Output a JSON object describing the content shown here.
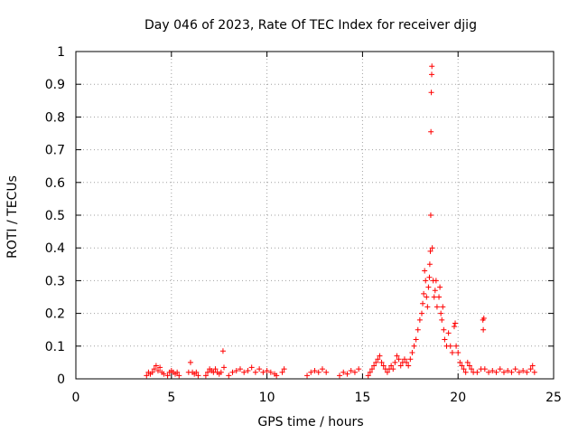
{
  "chart_data": {
    "type": "scatter",
    "title": "Day 046 of 2023, Rate Of TEC Index for receiver djig",
    "xlabel": "GPS time / hours",
    "ylabel": "ROTI / TECUs",
    "xlim": [
      0,
      25
    ],
    "ylim": [
      0,
      1
    ],
    "xticks": [
      "0",
      "5",
      "10",
      "15",
      "20",
      "25"
    ],
    "yticks": [
      "0",
      "0.1",
      "0.2",
      "0.3",
      "0.4",
      "0.5",
      "0.6",
      "0.7",
      "0.8",
      "0.9",
      "1"
    ],
    "grid": true,
    "marker": "+",
    "series": [
      {
        "color": "#ff0000",
        "points": [
          [
            3.7,
            0.01
          ],
          [
            3.8,
            0.02
          ],
          [
            3.9,
            0.015
          ],
          [
            4.0,
            0.02
          ],
          [
            4.1,
            0.03
          ],
          [
            4.2,
            0.04
          ],
          [
            4.3,
            0.025
          ],
          [
            4.4,
            0.035
          ],
          [
            4.5,
            0.02
          ],
          [
            4.6,
            0.015
          ],
          [
            4.8,
            0.01
          ],
          [
            4.9,
            0.02
          ],
          [
            5.0,
            0.025
          ],
          [
            5.1,
            0.02
          ],
          [
            5.2,
            0.015
          ],
          [
            5.3,
            0.02
          ],
          [
            5.4,
            0.01
          ],
          [
            5.9,
            0.02
          ],
          [
            6.0,
            0.05
          ],
          [
            6.1,
            0.02
          ],
          [
            6.2,
            0.015
          ],
          [
            6.3,
            0.02
          ],
          [
            6.4,
            0.01
          ],
          [
            6.8,
            0.01
          ],
          [
            6.9,
            0.02
          ],
          [
            7.0,
            0.03
          ],
          [
            7.1,
            0.025
          ],
          [
            7.2,
            0.02
          ],
          [
            7.3,
            0.03
          ],
          [
            7.4,
            0.02
          ],
          [
            7.5,
            0.015
          ],
          [
            7.6,
            0.02
          ],
          [
            7.7,
            0.085
          ],
          [
            7.75,
            0.035
          ],
          [
            8.0,
            0.01
          ],
          [
            8.2,
            0.02
          ],
          [
            8.4,
            0.025
          ],
          [
            8.6,
            0.03
          ],
          [
            8.8,
            0.02
          ],
          [
            9.0,
            0.025
          ],
          [
            9.2,
            0.035
          ],
          [
            9.4,
            0.02
          ],
          [
            9.6,
            0.03
          ],
          [
            9.8,
            0.02
          ],
          [
            10.0,
            0.025
          ],
          [
            10.2,
            0.02
          ],
          [
            10.4,
            0.015
          ],
          [
            10.5,
            0.01
          ],
          [
            10.8,
            0.02
          ],
          [
            10.9,
            0.03
          ],
          [
            12.1,
            0.01
          ],
          [
            12.3,
            0.02
          ],
          [
            12.5,
            0.025
          ],
          [
            12.7,
            0.02
          ],
          [
            12.9,
            0.03
          ],
          [
            13.1,
            0.02
          ],
          [
            13.8,
            0.01
          ],
          [
            14.0,
            0.02
          ],
          [
            14.2,
            0.015
          ],
          [
            14.4,
            0.025
          ],
          [
            14.6,
            0.02
          ],
          [
            14.8,
            0.03
          ],
          [
            15.3,
            0.01
          ],
          [
            15.4,
            0.02
          ],
          [
            15.5,
            0.03
          ],
          [
            15.6,
            0.04
          ],
          [
            15.7,
            0.05
          ],
          [
            15.8,
            0.06
          ],
          [
            15.9,
            0.07
          ],
          [
            16.0,
            0.05
          ],
          [
            16.1,
            0.04
          ],
          [
            16.2,
            0.03
          ],
          [
            16.3,
            0.02
          ],
          [
            16.4,
            0.03
          ],
          [
            16.5,
            0.04
          ],
          [
            16.6,
            0.03
          ],
          [
            16.7,
            0.05
          ],
          [
            16.8,
            0.07
          ],
          [
            16.9,
            0.06
          ],
          [
            17.0,
            0.04
          ],
          [
            17.1,
            0.05
          ],
          [
            17.2,
            0.06
          ],
          [
            17.3,
            0.05
          ],
          [
            17.4,
            0.04
          ],
          [
            17.5,
            0.06
          ],
          [
            17.6,
            0.08
          ],
          [
            17.7,
            0.1
          ],
          [
            17.8,
            0.12
          ],
          [
            17.9,
            0.15
          ],
          [
            18.0,
            0.18
          ],
          [
            18.1,
            0.2
          ],
          [
            18.15,
            0.23
          ],
          [
            18.2,
            0.26
          ],
          [
            18.25,
            0.33
          ],
          [
            18.3,
            0.3
          ],
          [
            18.35,
            0.25
          ],
          [
            18.4,
            0.22
          ],
          [
            18.45,
            0.28
          ],
          [
            18.5,
            0.31
          ],
          [
            18.52,
            0.35
          ],
          [
            18.55,
            0.39
          ],
          [
            18.57,
            0.5
          ],
          [
            18.58,
            0.755
          ],
          [
            18.6,
            0.875
          ],
          [
            18.62,
            0.93
          ],
          [
            18.63,
            0.955
          ],
          [
            18.65,
            0.4
          ],
          [
            18.7,
            0.3
          ],
          [
            18.75,
            0.25
          ],
          [
            18.8,
            0.27
          ],
          [
            18.85,
            0.3
          ],
          [
            18.9,
            0.22
          ],
          [
            19.0,
            0.25
          ],
          [
            19.05,
            0.28
          ],
          [
            19.1,
            0.2
          ],
          [
            19.15,
            0.18
          ],
          [
            19.2,
            0.22
          ],
          [
            19.25,
            0.15
          ],
          [
            19.3,
            0.12
          ],
          [
            19.4,
            0.1
          ],
          [
            19.5,
            0.14
          ],
          [
            19.6,
            0.1
          ],
          [
            19.7,
            0.08
          ],
          [
            19.8,
            0.16
          ],
          [
            19.85,
            0.17
          ],
          [
            19.9,
            0.1
          ],
          [
            20.0,
            0.08
          ],
          [
            20.1,
            0.05
          ],
          [
            20.2,
            0.04
          ],
          [
            20.3,
            0.03
          ],
          [
            20.4,
            0.02
          ],
          [
            20.5,
            0.05
          ],
          [
            20.6,
            0.04
          ],
          [
            20.7,
            0.03
          ],
          [
            20.8,
            0.02
          ],
          [
            21.0,
            0.02
          ],
          [
            21.2,
            0.03
          ],
          [
            21.3,
            0.18
          ],
          [
            21.32,
            0.15
          ],
          [
            21.35,
            0.185
          ],
          [
            21.4,
            0.03
          ],
          [
            21.6,
            0.02
          ],
          [
            21.8,
            0.025
          ],
          [
            22.0,
            0.02
          ],
          [
            22.2,
            0.03
          ],
          [
            22.4,
            0.02
          ],
          [
            22.6,
            0.025
          ],
          [
            22.8,
            0.02
          ],
          [
            23.0,
            0.03
          ],
          [
            23.2,
            0.02
          ],
          [
            23.4,
            0.025
          ],
          [
            23.6,
            0.02
          ],
          [
            23.8,
            0.03
          ],
          [
            23.9,
            0.04
          ],
          [
            24.0,
            0.02
          ]
        ]
      }
    ]
  }
}
